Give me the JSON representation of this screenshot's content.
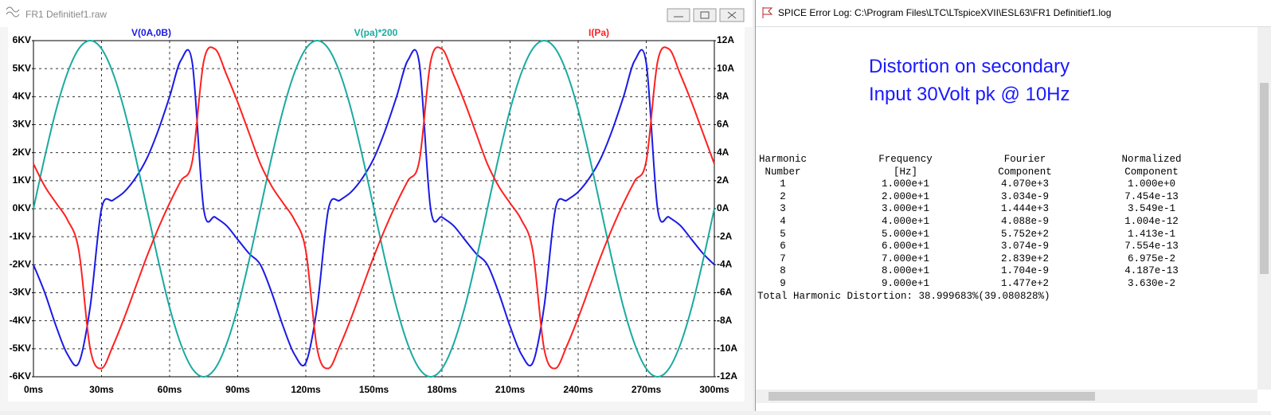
{
  "left_window": {
    "title": "FR1 Definitief1.raw"
  },
  "chart_data": {
    "type": "line",
    "x": [
      0,
      5,
      10,
      15,
      20,
      25,
      30,
      35,
      40,
      45,
      50,
      55,
      60,
      65,
      70,
      75,
      80,
      85,
      90,
      95,
      100,
      105,
      110,
      115,
      120,
      125,
      130,
      135,
      140,
      145,
      150,
      155,
      160,
      165,
      170,
      175,
      180,
      185,
      190,
      195,
      200,
      205,
      210,
      215,
      220,
      225,
      230,
      235,
      240,
      245,
      250,
      255,
      260,
      265,
      270,
      275,
      280,
      285,
      290,
      295,
      300
    ],
    "series": [
      {
        "name": "V(0A,0B)",
        "color": "#1a1ae6",
        "values": [
          -2,
          -3,
          -4.2,
          -5.2,
          -5.5,
          -3.5,
          0,
          0.3,
          0.6,
          1.1,
          1.8,
          2.8,
          4,
          5.3,
          5.2,
          0,
          -0.3,
          -0.6,
          -1.1,
          -1.6,
          -2,
          -3,
          -4.2,
          -5.2,
          -5.5,
          -3.5,
          0,
          0.3,
          0.6,
          1.1,
          1.8,
          2.8,
          4,
          5.3,
          5.2,
          0,
          -0.3,
          -0.6,
          -1.1,
          -1.6,
          -2,
          -3,
          -4.2,
          -5.2,
          -5.5,
          -3.5,
          0,
          0.3,
          0.6,
          1.1,
          1.8,
          2.8,
          4,
          5.3,
          5.2,
          0,
          -0.3,
          -0.6,
          -1.1,
          -1.6,
          -2
        ]
      },
      {
        "name": "V(pa)*200",
        "color": "#1aaaa0",
        "values": [
          0,
          1.85,
          3.53,
          4.85,
          5.71,
          6,
          5.71,
          4.85,
          3.53,
          1.85,
          0,
          -1.85,
          -3.53,
          -4.85,
          -5.71,
          -6,
          -5.71,
          -4.85,
          -3.53,
          -1.85,
          0,
          1.85,
          3.53,
          4.85,
          5.71,
          6,
          5.71,
          4.85,
          3.53,
          1.85,
          0,
          -1.85,
          -3.53,
          -4.85,
          -5.71,
          -6,
          -5.71,
          -4.85,
          -3.53,
          -1.85,
          0,
          1.85,
          3.53,
          4.85,
          5.71,
          6,
          5.71,
          4.85,
          3.53,
          1.85,
          0,
          -1.85,
          -3.53,
          -4.85,
          -5.71,
          -6,
          -5.71,
          -4.85,
          -3.53,
          -1.85,
          0
        ]
      },
      {
        "name": "I(Pa)",
        "color": "#ff2020",
        "axis": "y2",
        "values": [
          3.2,
          1.6,
          0.4,
          -0.8,
          -3,
          -10,
          -11.4,
          -9.8,
          -7.8,
          -5.6,
          -3.4,
          -1.4,
          0.4,
          2,
          3.4,
          10.5,
          11.4,
          9.6,
          7.6,
          5.4,
          3.2,
          1.6,
          0.4,
          -0.8,
          -3,
          -10,
          -11.4,
          -9.8,
          -7.8,
          -5.6,
          -3.4,
          -1.4,
          0.4,
          2,
          3.4,
          10.5,
          11.4,
          9.6,
          7.6,
          5.4,
          3.2,
          1.6,
          0.4,
          -0.8,
          -3,
          -10,
          -11.4,
          -9.8,
          -7.8,
          -5.6,
          -3.4,
          -1.4,
          0.4,
          2,
          3.4,
          10.5,
          11.4,
          9.6,
          7.6,
          5.4,
          3.2
        ]
      }
    ],
    "xlim": [
      0,
      300
    ],
    "xticks": [
      {
        "value": 0,
        "label": "0ms"
      },
      {
        "value": 30,
        "label": "30ms"
      },
      {
        "value": 60,
        "label": "60ms"
      },
      {
        "value": 90,
        "label": "90ms"
      },
      {
        "value": 120,
        "label": "120ms"
      },
      {
        "value": 150,
        "label": "150ms"
      },
      {
        "value": 180,
        "label": "180ms"
      },
      {
        "value": 210,
        "label": "210ms"
      },
      {
        "value": 240,
        "label": "240ms"
      },
      {
        "value": 270,
        "label": "270ms"
      },
      {
        "value": 300,
        "label": "300ms"
      }
    ],
    "ylim": [
      -6,
      6
    ],
    "yticks": [
      {
        "value": 6,
        "label": "6KV"
      },
      {
        "value": 5,
        "label": "5KV"
      },
      {
        "value": 4,
        "label": "4KV"
      },
      {
        "value": 3,
        "label": "3KV"
      },
      {
        "value": 2,
        "label": "2KV"
      },
      {
        "value": 1,
        "label": "1KV"
      },
      {
        "value": 0,
        "label": "0KV"
      },
      {
        "value": -1,
        "label": "-1KV"
      },
      {
        "value": -2,
        "label": "-2KV"
      },
      {
        "value": -3,
        "label": "-3KV"
      },
      {
        "value": -4,
        "label": "-4KV"
      },
      {
        "value": -5,
        "label": "-5KV"
      },
      {
        "value": -6,
        "label": "-6KV"
      }
    ],
    "y2lim": [
      -12,
      12
    ],
    "y2ticks": [
      {
        "value": 12,
        "label": "12A"
      },
      {
        "value": 10,
        "label": "10A"
      },
      {
        "value": 8,
        "label": "8A"
      },
      {
        "value": 6,
        "label": "6A"
      },
      {
        "value": 4,
        "label": "4A"
      },
      {
        "value": 2,
        "label": "2A"
      },
      {
        "value": 0,
        "label": "0A"
      },
      {
        "value": -2,
        "label": "-2A"
      },
      {
        "value": -4,
        "label": "-4A"
      },
      {
        "value": -6,
        "label": "-6A"
      },
      {
        "value": -8,
        "label": "-8A"
      },
      {
        "value": -10,
        "label": "-10A"
      },
      {
        "value": -12,
        "label": "-12A"
      }
    ],
    "grid": true
  },
  "log_window": {
    "title": "SPICE Error Log: C:\\Program Files\\LTC\\LTspiceXVII\\ESL63\\FR1 Definitief1.log",
    "heading": [
      "Distortion on secondary",
      "Input 30Volt pk @ 10Hz"
    ],
    "table": {
      "header": [
        [
          "Harmonic",
          "Frequency",
          "Fourier",
          "Normalized"
        ],
        [
          "Number",
          "[Hz]",
          "Component",
          "Component"
        ]
      ],
      "rows": [
        [
          "1",
          "1.000e+1",
          "4.070e+3",
          "1.000e+0"
        ],
        [
          "2",
          "2.000e+1",
          "3.034e-9",
          "7.454e-13"
        ],
        [
          "3",
          "3.000e+1",
          "1.444e+3",
          "3.549e-1"
        ],
        [
          "4",
          "4.000e+1",
          "4.088e-9",
          "1.004e-12"
        ],
        [
          "5",
          "5.000e+1",
          "5.752e+2",
          "1.413e-1"
        ],
        [
          "6",
          "6.000e+1",
          "3.074e-9",
          "7.554e-13"
        ],
        [
          "7",
          "7.000e+1",
          "2.839e+2",
          "6.975e-2"
        ],
        [
          "8",
          "8.000e+1",
          "1.704e-9",
          "4.187e-13"
        ],
        [
          "9",
          "9.000e+1",
          "1.477e+2",
          "3.630e-2"
        ]
      ]
    },
    "summary": "Total Harmonic Distortion: 38.999683%(39.080828%)"
  }
}
